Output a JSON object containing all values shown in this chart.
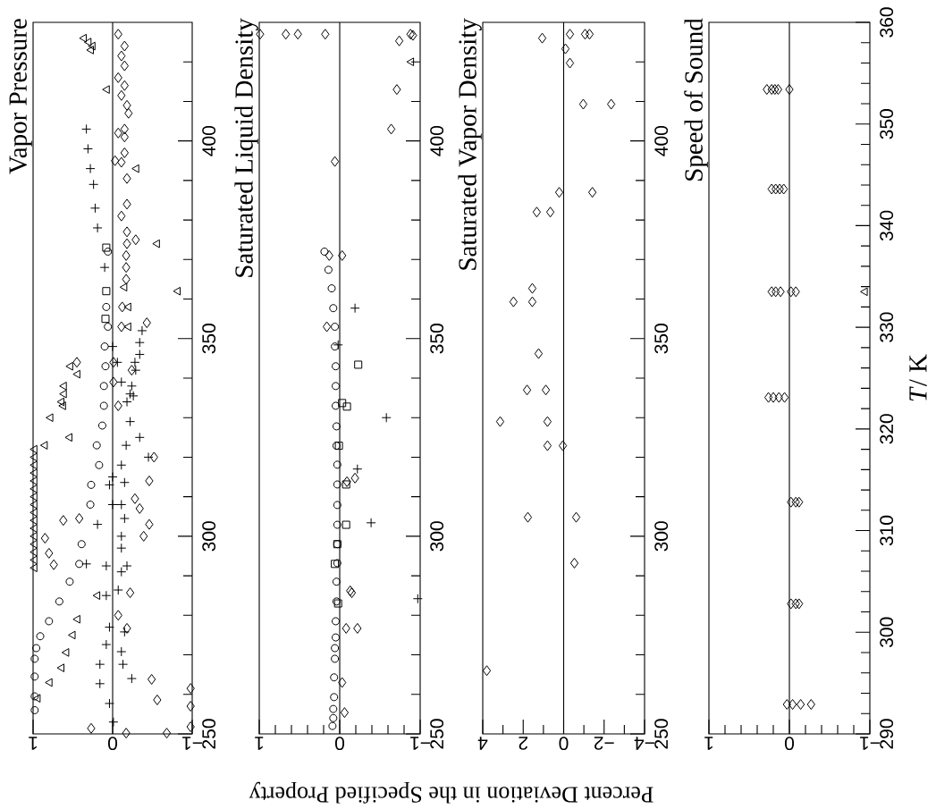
{
  "chart_data": [
    {
      "type": "scatter",
      "title": "Vapor Pressure",
      "xlim": [
        1,
        -1
      ],
      "ylim": [
        250,
        430
      ],
      "yticks": [
        250,
        {
          "value": 260,
          "label": null
        },
        {
          "value": 270,
          "label": null
        },
        {
          "value": 280,
          "label": null
        },
        {
          "value": 290,
          "label": null
        },
        300,
        {
          "value": 310,
          "label": null
        },
        {
          "value": 320,
          "label": null
        },
        {
          "value": 330,
          "label": null
        },
        {
          "value": 340,
          "label": null
        },
        350,
        {
          "value": 360,
          "label": null
        },
        {
          "value": 370,
          "label": null
        },
        {
          "value": 380,
          "label": null
        },
        {
          "value": 390,
          "label": null
        },
        400,
        {
          "value": 410,
          "label": null
        },
        {
          "value": 420,
          "label": null
        }
      ],
      "xticks": [
        1,
        0,
        {
          "value": -1,
          "label": "−1"
        }
      ],
      "ref_lines": [
        {
          "axis": "x",
          "value": 0
        }
      ],
      "series": [
        {
          "marker": "circle",
          "color": "#000000",
          "values": [
            372,
            358,
            353,
            348,
            343,
            338,
            333,
            328,
            323,
            318,
            313,
            308,
            298,
            293,
            288.5,
            283.5,
            278.5,
            274.7,
            271.7,
            269,
            264.5,
            259.5,
            256
          ],
          "x": [
            0.06,
            0.08,
            0.06,
            0.1,
            0.09,
            0.11,
            0.11,
            0.13,
            0.2,
            0.17,
            0.27,
            0.28,
            0.39,
            0.42,
            0.54,
            0.67,
            0.8,
            0.91,
            0.96,
            0.98,
            0.98,
            0.98,
            0.98
          ]
        },
        {
          "marker": "diamond",
          "color": "#000000",
          "values": [
            427,
            424,
            421.5,
            419,
            416,
            414,
            411.5,
            409,
            407,
            403,
            402,
            401,
            397,
            395,
            394.6,
            390.5,
            384,
            381,
            377,
            375,
            374,
            371,
            368,
            365,
            358,
            354,
            353,
            344,
            344,
            342,
            339,
            333,
            320,
            314,
            309.5,
            307,
            304.5,
            304,
            303,
            300,
            299.5,
            295.7,
            292.8,
            285.7,
            280,
            276.7,
            263.8,
            261.5,
            258.6,
            257,
            251.8,
            251.4,
            250.2,
            250.2
          ],
          "x": [
            -0.07,
            -0.15,
            -0.11,
            -0.15,
            -0.07,
            -0.15,
            -0.11,
            -0.18,
            -0.2,
            -0.15,
            -0.07,
            -0.15,
            -0.15,
            -0.03,
            -0.11,
            -0.18,
            -0.18,
            -0.11,
            -0.18,
            -0.29,
            -0.18,
            -0.17,
            -0.17,
            -0.17,
            -0.12,
            -0.43,
            -0.11,
            -0.01,
            0.45,
            -0.24,
            -0.01,
            -0.07,
            -0.52,
            -0.46,
            -0.28,
            -0.34,
            0.42,
            0.62,
            -0.46,
            -0.39,
            0.85,
            0.8,
            0.74,
            -0.22,
            -0.07,
            -0.18,
            -0.49,
            -0.98,
            -0.56,
            -0.98,
            -0.98,
            0.27,
            -0.68,
            -0.17
          ]
        },
        {
          "marker": "triangle",
          "color": "#000000",
          "values": [
            426,
            425,
            424,
            423,
            413,
            393,
            374,
            363,
            362,
            358,
            353,
            343,
            341,
            338,
            336,
            334,
            333,
            330,
            325,
            323,
            292,
            294,
            296,
            298,
            300,
            302,
            304,
            306,
            308,
            310,
            312,
            314,
            316,
            318,
            320,
            322
          ],
          "x": [
            0.36,
            0.3,
            0.25,
            0.27,
            0.07,
            -0.3,
            -0.56,
            -0.15,
            -0.82,
            -0.2,
            -0.2,
            0.53,
            0.44,
            0.61,
            0.61,
            0.64,
            0.62,
            0.78,
            0.54,
            0.85,
            0.98,
            0.98,
            0.98,
            0.98,
            0.98,
            0.98,
            0.98,
            0.98,
            0.98,
            0.98,
            0.98,
            0.98,
            0.98,
            0.98,
            0.98,
            0.98
          ]
        },
        {
          "marker": "triangle",
          "color": "#000000",
          "values": [
            285,
            279,
            275,
            270.6,
            266.7,
            263,
            259
          ],
          "x": [
            0.19,
            0.44,
            0.5,
            0.58,
            0.64,
            0.79,
            0.94
          ]
        },
        {
          "marker": "cross",
          "color": "#000000",
          "values": [
            403,
            398,
            393,
            389,
            383,
            378,
            368,
            348,
            344,
            339,
            325,
            320,
            315,
            308,
            300,
            292.5,
            285,
            277,
            272.6,
            267.6,
            262.7,
            257.7,
            253
          ],
          "x": [
            0.33,
            0.31,
            0.28,
            0.24,
            0.22,
            0.19,
            0.1,
            0,
            -0.06,
            -0.11,
            -0.34,
            -0.45,
            0,
            0,
            -0.11,
            -0.18,
            0.08,
            0.04,
            0.08,
            0.16,
            0.16,
            0.04,
            -0.01
          ]
        },
        {
          "marker": "square",
          "color": "#000000",
          "values": [
            373,
            362,
            355
          ],
          "x": [
            0.08,
            0.08,
            0.09
          ]
        },
        {
          "marker": "cross",
          "color": "#000000",
          "values": [
            352,
            349,
            346,
            344,
            342,
            338,
            336,
            335.5,
            334,
            329,
            323,
            318,
            313.6,
            308,
            304.5,
            297,
            291,
            286.4,
            275.8,
            270.8,
            267.6,
            264
          ],
          "x": [
            -0.37,
            -0.34,
            -0.34,
            -0.28,
            -0.29,
            -0.24,
            -0.22,
            -0.26,
            -0.18,
            -0.22,
            -0.17,
            -0.11,
            -0.15,
            -0.11,
            -0.15,
            -0.11,
            -0.11,
            -0.07,
            -0.15,
            -0.11,
            -0.13,
            -0.24
          ]
        },
        {
          "marker": "cross",
          "color": "#000000",
          "values": [
            313,
            303,
            293,
            292.5
          ],
          "x": [
            0.04,
            0.19,
            0.33,
            0.08
          ]
        }
      ]
    },
    {
      "type": "scatter",
      "title": "Saturated Liquid Density",
      "xlabel": "Percent Deviation in the Specified Property",
      "xlim": [
        1,
        -1
      ],
      "ylim": [
        250,
        430
      ],
      "yticks": [
        250,
        {
          "value": 260,
          "label": null
        },
        {
          "value": 270,
          "label": null
        },
        {
          "value": 280,
          "label": null
        },
        {
          "value": 290,
          "label": null
        },
        300,
        {
          "value": 310,
          "label": null
        },
        {
          "value": 320,
          "label": null
        },
        {
          "value": 330,
          "label": null
        },
        {
          "value": 340,
          "label": null
        },
        350,
        {
          "value": 360,
          "label": null
        },
        {
          "value": 370,
          "label": null
        },
        {
          "value": 380,
          "label": null
        },
        {
          "value": 390,
          "label": null
        },
        400,
        {
          "value": 410,
          "label": null
        },
        {
          "value": 420,
          "label": null
        }
      ],
      "xticks": [
        1,
        {
          "value": 0.8,
          "label": null
        },
        {
          "value": 0.6,
          "label": null
        },
        {
          "value": 0.4,
          "label": null
        },
        {
          "value": 0.2,
          "label": null
        },
        0,
        {
          "value": -0.2,
          "label": null
        },
        {
          "value": -0.4,
          "label": null
        },
        {
          "value": -0.6,
          "label": null
        },
        {
          "value": -0.8,
          "label": null
        },
        {
          "value": -1,
          "label": "−1"
        }
      ],
      "ref_lines": [
        {
          "axis": "x",
          "value": 0
        }
      ],
      "series": [
        {
          "marker": "circle",
          "color": "#000000",
          "values": [
            372,
            367.4,
            362.7,
            357.7,
            353,
            348,
            343,
            338,
            333,
            327.8,
            322.9,
            318.1,
            313.1,
            307.9,
            302.9,
            298,
            293.2,
            288.5,
            283.5,
            278.5,
            274.4,
            271.7,
            269,
            264.3,
            259.3,
            256.3,
            254,
            252
          ],
          "x": [
            0.19,
            0.14,
            0.1,
            0.08,
            0.06,
            0.06,
            0.05,
            0.05,
            0.05,
            0.04,
            0.04,
            0.03,
            0.03,
            0.03,
            0.03,
            0.03,
            0.03,
            0.04,
            0.04,
            0.05,
            0.05,
            0.06,
            0.06,
            0.07,
            0.07,
            0.08,
            0.08,
            0.09
          ]
        },
        {
          "marker": "diamond",
          "color": "#000000",
          "values": [
            427,
            427,
            427,
            427,
            427,
            426.7,
            425.3,
            413,
            403,
            394.8,
            371,
            371,
            353,
            313.8,
            314.7,
            286.2,
            285.7,
            276.7,
            276.7,
            263,
            255.4
          ],
          "x": [
            0.99,
            0.67,
            0.52,
            0.18,
            -0.88,
            -0.91,
            -0.74,
            -0.71,
            -0.64,
            0.06,
            0.13,
            -0.03,
            0.16,
            -0.09,
            -0.19,
            -0.13,
            -0.15,
            -0.08,
            -0.22,
            -0.03,
            -0.06
          ]
        },
        {
          "marker": "triangle",
          "color": "#000000",
          "values": [
            420
          ],
          "x": [
            -0.89
          ]
        },
        {
          "marker": "cross",
          "color": "#000000",
          "values": [
            357.7,
            348.4,
            330,
            317,
            303.4,
            284.2
          ],
          "x": [
            -0.19,
            0.02,
            -0.58,
            -0.22,
            -0.39,
            -0.97
          ]
        },
        {
          "marker": "square",
          "color": "#000000",
          "values": [
            343.4,
            333.7,
            332.8,
            322.9,
            313.1,
            302.9,
            298,
            293,
            283
          ],
          "x": [
            -0.23,
            -0.03,
            -0.09,
            0.01,
            -0.08,
            -0.08,
            0.03,
            0.06,
            0.02
          ]
        }
      ]
    },
    {
      "type": "scatter",
      "title": "Saturated Vapor Density",
      "xlim": [
        4,
        -4
      ],
      "ylim": [
        250,
        430
      ],
      "yticks": [
        250,
        {
          "value": 260,
          "label": null
        },
        {
          "value": 270,
          "label": null
        },
        {
          "value": 280,
          "label": null
        },
        {
          "value": 290,
          "label": null
        },
        300,
        {
          "value": 310,
          "label": null
        },
        {
          "value": 320,
          "label": null
        },
        {
          "value": 330,
          "label": null
        },
        {
          "value": 340,
          "label": null
        },
        350,
        {
          "value": 360,
          "label": null
        },
        {
          "value": 370,
          "label": null
        },
        {
          "value": 380,
          "label": null
        },
        {
          "value": 390,
          "label": null
        },
        400,
        {
          "value": 410,
          "label": null
        },
        {
          "value": 420,
          "label": null
        }
      ],
      "xticks": [
        4,
        {
          "value": 3,
          "label": null
        },
        2,
        {
          "value": 1,
          "label": null
        },
        0,
        {
          "value": -1,
          "label": null
        },
        {
          "value": -2,
          "label": "−2"
        },
        {
          "value": -3,
          "label": null
        },
        {
          "value": -4,
          "label": "−4"
        }
      ],
      "ref_lines": [
        {
          "axis": "x",
          "value": 0
        }
      ],
      "series": [
        {
          "marker": "diamond",
          "color": "#000000",
          "values": [
            426,
            427,
            427,
            427,
            423.3,
            419.7,
            409.3,
            409.3,
            387,
            387,
            382,
            382,
            362.7,
            359.3,
            359.3,
            346.2,
            337,
            337,
            329,
            329,
            322.9,
            322.9,
            304.8,
            304.8,
            293.2,
            266
          ],
          "x": [
            1.06,
            -0.31,
            -1.06,
            -1.28,
            -0.09,
            -0.31,
            -0.97,
            -2.35,
            0.22,
            -1.42,
            1.33,
            0.66,
            1.55,
            2.48,
            1.55,
            1.24,
            1.81,
            0.88,
            3.14,
            0.8,
            0.8,
            0.04,
            1.77,
            -0.62,
            -0.53,
            3.8
          ]
        }
      ]
    },
    {
      "type": "scatter",
      "title": "Speed of Sound",
      "ylabel": "*T*/ K",
      "xlim": [
        1,
        -1
      ],
      "ylim": [
        290,
        360
      ],
      "yticks": [
        290,
        {
          "value": 292,
          "label": null
        },
        {
          "value": 294,
          "label": null
        },
        {
          "value": 296,
          "label": null
        },
        {
          "value": 298,
          "label": null
        },
        300,
        {
          "value": 302,
          "label": null
        },
        {
          "value": 304,
          "label": null
        },
        {
          "value": 306,
          "label": null
        },
        {
          "value": 308,
          "label": null
        },
        310,
        {
          "value": 312,
          "label": null
        },
        {
          "value": 314,
          "label": null
        },
        {
          "value": 316,
          "label": null
        },
        {
          "value": 318,
          "label": null
        },
        320,
        {
          "value": 322,
          "label": null
        },
        {
          "value": 324,
          "label": null
        },
        {
          "value": 326,
          "label": null
        },
        {
          "value": 328,
          "label": null
        },
        330,
        {
          "value": 332,
          "label": null
        },
        {
          "value": 334,
          "label": null
        },
        {
          "value": 336,
          "label": null
        },
        {
          "value": 338,
          "label": null
        },
        340,
        {
          "value": 342,
          "label": null
        },
        {
          "value": 344,
          "label": null
        },
        {
          "value": 346,
          "label": null
        },
        {
          "value": 348,
          "label": null
        },
        350,
        {
          "value": 352,
          "label": null
        },
        {
          "value": 354,
          "label": null
        },
        {
          "value": 356,
          "label": null
        },
        {
          "value": 358,
          "label": null
        },
        360
      ],
      "xticks": [
        1,
        {
          "value": 0.8,
          "label": null
        },
        {
          "value": 0.6,
          "label": null
        },
        {
          "value": 0.4,
          "label": null
        },
        {
          "value": 0.2,
          "label": null
        },
        0,
        {
          "value": -0.2,
          "label": null
        },
        {
          "value": -0.4,
          "label": null
        },
        {
          "value": -0.6,
          "label": null
        },
        {
          "value": -0.8,
          "label": null
        },
        {
          "value": -1,
          "label": "−1"
        }
      ],
      "ref_lines": [
        {
          "axis": "x",
          "value": 0
        }
      ],
      "series": [
        {
          "marker": "diamond",
          "color": "#000000",
          "values": [
            353.4,
            353.4,
            353.4,
            353.4,
            353.4,
            343.6,
            343.6,
            343.6,
            343.6,
            333.5,
            333.5,
            333.5,
            333.5,
            333.5,
            323.1,
            323.1,
            323.1,
            323.1,
            312.8,
            312.8,
            312.8,
            302.8,
            302.8,
            302.8,
            292.9,
            292.9,
            292.9,
            292.9
          ],
          "x": [
            0.28,
            0.22,
            0.18,
            0.14,
            0,
            0.22,
            0.17,
            0.12,
            0.07,
            0.22,
            0.17,
            0.11,
            -0.02,
            -0.08,
            0.26,
            0.2,
            0.13,
            0.06,
            -0.02,
            -0.08,
            -0.12,
            -0.02,
            -0.08,
            -0.12,
            0.03,
            -0.04,
            -0.14,
            -0.27
          ]
        },
        {
          "marker": "triangle",
          "color": "#000000",
          "values": [
            333.5
          ],
          "x": [
            -0.94
          ]
        }
      ]
    }
  ]
}
